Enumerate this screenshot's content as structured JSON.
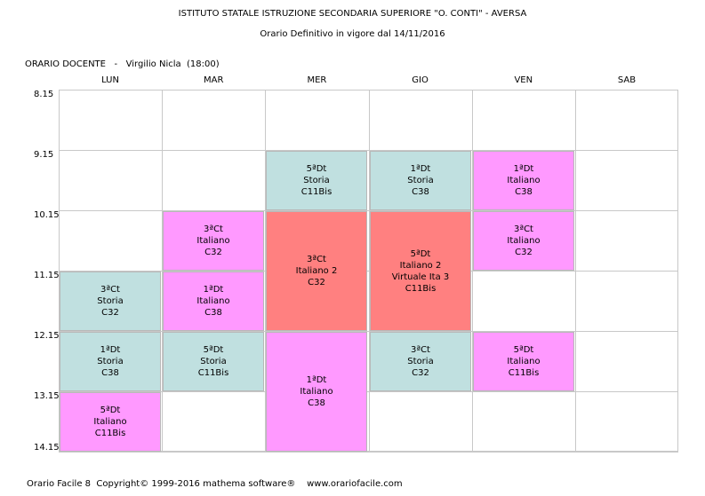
{
  "header": {
    "school": "ISTITUTO STATALE ISTRUZIONE SECONDARIA SUPERIORE \"O. CONTI\" - AVERSA",
    "schedule": "Orario Definitivo in vigore dal 14/11/2016"
  },
  "teacher_label": "ORARIO DOCENTE   -   Virgilio Nicla  (18:00)",
  "days": [
    "LUN",
    "MAR",
    "MER",
    "GIO",
    "VEN",
    "SAB"
  ],
  "times": [
    "8.15",
    "9.15",
    "10.15",
    "11.15",
    "12.15",
    "13.15",
    "14.15"
  ],
  "colors": {
    "individual": "#ff99ff",
    "group": "#c0e0e0",
    "joint": "#ff8080",
    "grid": "#c8c8c8"
  },
  "lessons": [
    {
      "day": "MER",
      "start": "9.15",
      "hours": 1,
      "kind": "group",
      "lines": [
        "5ªDt",
        "Storia",
        "C11Bis"
      ]
    },
    {
      "day": "GIO",
      "start": "9.15",
      "hours": 1,
      "kind": "group",
      "lines": [
        "1ªDt",
        "Storia",
        "C38"
      ]
    },
    {
      "day": "VEN",
      "start": "9.15",
      "hours": 1,
      "kind": "individual",
      "lines": [
        "1ªDt",
        "Italiano",
        "C38"
      ]
    },
    {
      "day": "MAR",
      "start": "10.15",
      "hours": 1,
      "kind": "individual",
      "lines": [
        "3ªCt",
        "Italiano",
        "C32"
      ]
    },
    {
      "day": "MER",
      "start": "10.15",
      "hours": 2,
      "kind": "joint",
      "lines": [
        "3ªCt",
        "Italiano 2",
        "C32"
      ]
    },
    {
      "day": "GIO",
      "start": "10.15",
      "hours": 2,
      "kind": "joint",
      "lines": [
        "5ªDt",
        "Italiano 2",
        "Virtuale Ita 3",
        "C11Bis"
      ]
    },
    {
      "day": "VEN",
      "start": "10.15",
      "hours": 1,
      "kind": "individual",
      "lines": [
        "3ªCt",
        "Italiano",
        "C32"
      ]
    },
    {
      "day": "LUN",
      "start": "11.15",
      "hours": 1,
      "kind": "group",
      "lines": [
        "3ªCt",
        "Storia",
        "C32"
      ]
    },
    {
      "day": "MAR",
      "start": "11.15",
      "hours": 1,
      "kind": "individual",
      "lines": [
        "1ªDt",
        "Italiano",
        "C38"
      ]
    },
    {
      "day": "LUN",
      "start": "12.15",
      "hours": 1,
      "kind": "group",
      "lines": [
        "1ªDt",
        "Storia",
        "C38"
      ]
    },
    {
      "day": "MAR",
      "start": "12.15",
      "hours": 1,
      "kind": "group",
      "lines": [
        "5ªDt",
        "Storia",
        "C11Bis"
      ]
    },
    {
      "day": "MER",
      "start": "12.15",
      "hours": 2,
      "kind": "individual",
      "lines": [
        "1ªDt",
        "Italiano",
        "C38"
      ]
    },
    {
      "day": "GIO",
      "start": "12.15",
      "hours": 1,
      "kind": "group",
      "lines": [
        "3ªCt",
        "Storia",
        "C32"
      ]
    },
    {
      "day": "VEN",
      "start": "12.15",
      "hours": 1,
      "kind": "individual",
      "lines": [
        "5ªDt",
        "Italiano",
        "C11Bis"
      ]
    },
    {
      "day": "LUN",
      "start": "13.15",
      "hours": 1,
      "kind": "individual",
      "lines": [
        "5ªDt",
        "Italiano",
        "C11Bis"
      ]
    }
  ],
  "footer": "Orario Facile 8  Copyright© 1999-2016 mathema software®    www.orariofacile.com"
}
